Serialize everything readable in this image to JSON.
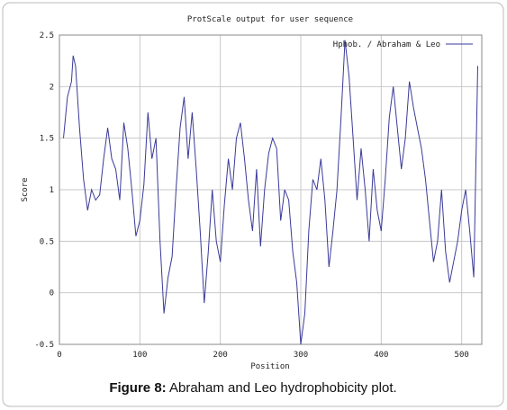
{
  "chart_data": {
    "type": "line",
    "title": "ProtScale output for user sequence",
    "xlabel": "Position",
    "ylabel": "Score",
    "x": [
      5,
      10,
      15,
      17,
      20,
      25,
      30,
      35,
      40,
      45,
      50,
      55,
      60,
      65,
      70,
      75,
      80,
      85,
      90,
      95,
      100,
      105,
      110,
      115,
      120,
      125,
      130,
      135,
      140,
      145,
      150,
      155,
      160,
      165,
      170,
      175,
      180,
      185,
      190,
      195,
      200,
      205,
      210,
      215,
      220,
      225,
      230,
      235,
      240,
      245,
      250,
      255,
      260,
      265,
      270,
      275,
      280,
      285,
      290,
      295,
      300,
      305,
      310,
      315,
      320,
      325,
      330,
      335,
      340,
      345,
      350,
      355,
      360,
      365,
      370,
      375,
      380,
      385,
      390,
      395,
      400,
      405,
      410,
      415,
      420,
      425,
      430,
      435,
      440,
      445,
      450,
      455,
      460,
      465,
      470,
      475,
      480,
      485,
      490,
      495,
      500,
      505,
      510,
      515,
      520
    ],
    "series": [
      {
        "name": "Hphob. / Abraham & Leo",
        "color": "#3a3a9a",
        "values": [
          1.5,
          1.9,
          2.05,
          2.3,
          2.2,
          1.6,
          1.1,
          0.8,
          1.0,
          0.9,
          0.95,
          1.3,
          1.6,
          1.3,
          1.2,
          0.9,
          1.65,
          1.4,
          1.0,
          0.55,
          0.7,
          1.05,
          1.75,
          1.3,
          1.5,
          0.5,
          -0.2,
          0.15,
          0.35,
          1.0,
          1.6,
          1.9,
          1.3,
          1.75,
          1.2,
          0.6,
          -0.1,
          0.4,
          1.0,
          0.5,
          0.3,
          0.85,
          1.3,
          1.0,
          1.5,
          1.65,
          1.3,
          0.9,
          0.6,
          1.2,
          0.45,
          1.0,
          1.35,
          1.5,
          1.4,
          0.7,
          1.0,
          0.9,
          0.4,
          0.1,
          -0.5,
          -0.2,
          0.6,
          1.1,
          1.0,
          1.3,
          0.9,
          0.25,
          0.6,
          1.0,
          1.7,
          2.45,
          2.1,
          1.5,
          0.9,
          1.4,
          1.0,
          0.5,
          1.2,
          0.8,
          0.6,
          1.1,
          1.7,
          2.0,
          1.6,
          1.2,
          1.5,
          2.05,
          1.8,
          1.6,
          1.4,
          1.1,
          0.7,
          0.3,
          0.5,
          1.0,
          0.4,
          0.1,
          0.3,
          0.5,
          0.8,
          1.0,
          0.6,
          0.15,
          2.2
        ]
      }
    ],
    "xlim": [
      0,
      525
    ],
    "xticks": [
      0,
      100,
      200,
      300,
      400,
      500
    ],
    "ylim": [
      -0.5,
      2.5
    ],
    "yticks": [
      -0.5,
      0,
      0.5,
      1,
      1.5,
      2,
      2.5
    ],
    "grid": true,
    "legend": "top-right"
  },
  "caption": {
    "label": "Figure 8:",
    "text": "Abraham and Leo hydrophobicity plot."
  }
}
